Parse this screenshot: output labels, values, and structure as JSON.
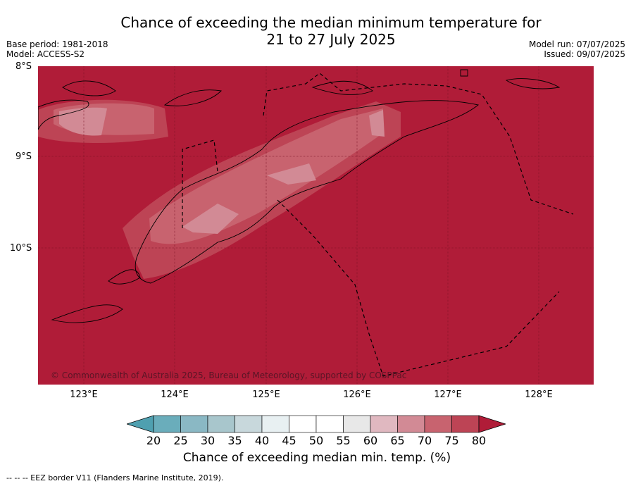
{
  "header": {
    "title_line1": "Chance of exceeding the median minimum temperature for",
    "title_line2": "21 to 27 July 2025",
    "base_period": "Base period: 1981-2018",
    "model": "Model: ACCESS-S2",
    "model_run": "Model run: 07/07/2025",
    "issued": "Issued: 09/07/2025"
  },
  "map": {
    "lat_labels": [
      "8°S",
      "9°S",
      "10°S"
    ],
    "lon_labels": [
      "123°E",
      "124°E",
      "125°E",
      "126°E",
      "127°E",
      "128°E"
    ],
    "background_color": "#b01c38",
    "credit": "© Commonwealth of Australia 2025, Bureau of Meteorology, supported by COSPPac"
  },
  "colorbar": {
    "ticks": [
      "20",
      "25",
      "30",
      "35",
      "40",
      "45",
      "50",
      "55",
      "60",
      "65",
      "70",
      "75",
      "80"
    ],
    "colors": [
      "#4fa0b0",
      "#6aadbb",
      "#8ab8c4",
      "#a8c6cc",
      "#c8d8dc",
      "#e8f0f2",
      "#ffffff",
      "#ffffff",
      "#e8e8e8",
      "#e0b8c0",
      "#d28a95",
      "#c8636f",
      "#bd4455",
      "#b01c38"
    ],
    "label": "Chance of exceeding median min. temp. (%)"
  },
  "footer": {
    "legend": "--  --  -- EEZ border V11 (Flanders Marine Institute, 2019)."
  }
}
